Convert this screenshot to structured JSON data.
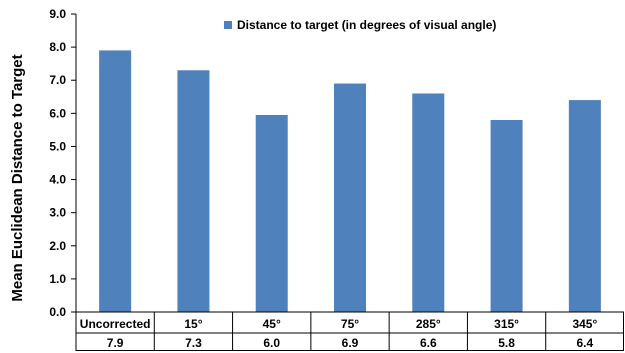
{
  "chart_data": {
    "type": "bar",
    "categories": [
      "Uncorrected",
      "15°",
      "45°",
      "75°",
      "285°",
      "315°",
      "345°"
    ],
    "series": [
      {
        "name": "Distance to target (in degrees of visual angle)",
        "values": [
          7.9,
          7.3,
          5.95,
          6.9,
          6.6,
          5.8,
          6.4
        ],
        "color": "#4F81BD"
      }
    ],
    "table_labels": [
      "7.9",
      "7.3",
      "6.0",
      "6.9",
      "6.6",
      "5.8",
      "6.4"
    ],
    "ylabel": "Mean Euclidean Distance to Target",
    "ylim": [
      0,
      9
    ],
    "yticks": [
      "0.0",
      "1.0",
      "2.0",
      "3.0",
      "4.0",
      "5.0",
      "6.0",
      "7.0",
      "8.0",
      "9.0"
    ],
    "legend_position": "top-center",
    "grid": false
  }
}
